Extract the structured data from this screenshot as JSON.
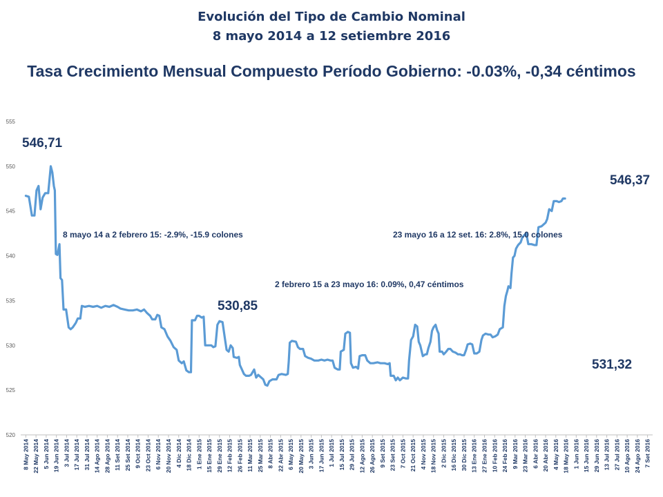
{
  "title_line1": "Evolución del Tipo de Cambio Nominal",
  "title_line2": "8 mayo 2014 a 12 setiembre 2016",
  "subtitle": "Tasa Crecimiento Mensual Compuesto Período Gobierno: -0.03%, -0,34 céntimos",
  "annotations": {
    "start_value": "546,71",
    "end_value": "546,37",
    "mid_low": "530,85",
    "late_low": "531,32",
    "period1": "8 mayo 14 a 2 febrero 15: -2.9%, -15.9 colones",
    "period2": "2 febrero 15 a 23 mayo 16: 0.09%, 0,47 céntimos",
    "period3": "23 mayo 16 a 12 set. 16: 2.8%, 15.0 colones"
  },
  "colors": {
    "line": "#5b9bd5",
    "title": "#1f3864",
    "axis": "#bfbfbf"
  },
  "chart_data": {
    "type": "line",
    "title": "Evolución del Tipo de Cambio Nominal",
    "ylim": [
      520,
      555
    ],
    "yticks": [
      520,
      525,
      530,
      535,
      540,
      545,
      550,
      555
    ],
    "grid": false,
    "x_tick_labels": [
      "8 May 2014",
      "22 May 2014",
      "5 Jun 2014",
      "19 Jun 2014",
      "3 Jul 2014",
      "17 Jul 2014",
      "31 Jul 2014",
      "14 Ago 2014",
      "28 Ago 2014",
      "11 Set 2014",
      "25 Set 2014",
      "9 Oct 2014",
      "23 Oct 2014",
      "6 Nov 2014",
      "20 Nov 2014",
      "4 Dic 2014",
      "18 Dic 2014",
      "1 Ene 2015",
      "15 Ene 2015",
      "29 Ene 2015",
      "12 Feb 2015",
      "26 Feb 2015",
      "11 Mar 2015",
      "25 Mar 2015",
      "8 Abr 2015",
      "22 Abr 2015",
      "6 May 2015",
      "20 May 2015",
      "3 Jun 2015",
      "17 Jun 2015",
      "1 Jul 2015",
      "15 Jul 2015",
      "29 Jul 2015",
      "12 Ago 2015",
      "26 Ago 2015",
      "9 Set 2015",
      "23 Set 2015",
      "7 Oct 2015",
      "21 Oct 2015",
      "4 Nov 2015",
      "18 Nov 2015",
      "2 Dic 2015",
      "16 Dic 2015",
      "30 Dic 2015",
      "13 Ene 2016",
      "27 Ene 2016",
      "10 Feb 2016",
      "24 Feb 2016",
      "9 Mar 2016",
      "23 Mar 2016",
      "6 Abr 2016",
      "20 Abr 2016",
      "4 May 2016",
      "18 May 2016",
      "1 Jun 2016",
      "15 Jun 2016",
      "29 Jun 2016",
      "13 Jul 2016",
      "27 Jul 2016",
      "10 Ago 2016",
      "24 Ago 2016",
      "7 Set 2016"
    ],
    "series": [
      {
        "values": [
          [
            0,
            546.7
          ],
          [
            0.3,
            546.6
          ],
          [
            0.6,
            544.5
          ],
          [
            0.85,
            544.5
          ],
          [
            1.05,
            547.3
          ],
          [
            1.25,
            547.8
          ],
          [
            1.45,
            545.2
          ],
          [
            1.65,
            546.5
          ],
          [
            1.9,
            547
          ],
          [
            2.2,
            547
          ],
          [
            2.45,
            550
          ],
          [
            2.6,
            549.3
          ],
          [
            2.75,
            547.8
          ],
          [
            2.85,
            547.3
          ],
          [
            2.95,
            540.2
          ],
          [
            3.1,
            540.1
          ],
          [
            3.3,
            541.3
          ],
          [
            3.4,
            537.5
          ],
          [
            3.55,
            537.3
          ],
          [
            3.7,
            534
          ],
          [
            3.95,
            534
          ],
          [
            4.2,
            532
          ],
          [
            4.4,
            531.8
          ],
          [
            4.6,
            532
          ],
          [
            4.9,
            532.5
          ],
          [
            5.1,
            533
          ],
          [
            5.35,
            533
          ],
          [
            5.5,
            534.4
          ],
          [
            5.8,
            534.3
          ],
          [
            6.2,
            534.4
          ],
          [
            6.6,
            534.3
          ],
          [
            7,
            534.4
          ],
          [
            7.4,
            534.2
          ],
          [
            7.8,
            534.4
          ],
          [
            8.2,
            534.3
          ],
          [
            8.6,
            534.5
          ],
          [
            9,
            534.3
          ],
          [
            9.3,
            534.1
          ],
          [
            9.7,
            534
          ],
          [
            10.1,
            533.9
          ],
          [
            10.5,
            533.9
          ],
          [
            10.9,
            534
          ],
          [
            11.3,
            533.8
          ],
          [
            11.6,
            534
          ],
          [
            11.9,
            533.6
          ],
          [
            12.2,
            533.3
          ],
          [
            12.4,
            532.9
          ],
          [
            12.7,
            532.9
          ],
          [
            12.9,
            533.4
          ],
          [
            13.1,
            533.3
          ],
          [
            13.3,
            532
          ],
          [
            13.6,
            531.8
          ],
          [
            13.9,
            531
          ],
          [
            14.2,
            530.5
          ],
          [
            14.5,
            529.8
          ],
          [
            14.8,
            529.5
          ],
          [
            15,
            528.3
          ],
          [
            15.3,
            528
          ],
          [
            15.5,
            528.2
          ],
          [
            15.75,
            527.2
          ],
          [
            16,
            527
          ],
          [
            16.2,
            527
          ],
          [
            16.3,
            532.8
          ],
          [
            16.6,
            532.8
          ],
          [
            16.8,
            533.3
          ],
          [
            17,
            533.3
          ],
          [
            17.25,
            533.1
          ],
          [
            17.45,
            533.2
          ],
          [
            17.6,
            530
          ],
          [
            17.9,
            530
          ],
          [
            18.2,
            530
          ],
          [
            18.4,
            529.8
          ],
          [
            18.6,
            529.9
          ],
          [
            18.8,
            532.3
          ],
          [
            19,
            532.7
          ],
          [
            19.3,
            532.6
          ],
          [
            19.5,
            531
          ],
          [
            19.7,
            529.5
          ],
          [
            19.9,
            529.3
          ],
          [
            20.1,
            530
          ],
          [
            20.3,
            529.7
          ],
          [
            20.4,
            528.7
          ],
          [
            20.7,
            528.6
          ],
          [
            20.9,
            528.7
          ],
          [
            21,
            527.8
          ],
          [
            21.2,
            527.3
          ],
          [
            21.4,
            526.8
          ],
          [
            21.6,
            526.6
          ],
          [
            21.9,
            526.6
          ],
          [
            22.1,
            526.7
          ],
          [
            22.4,
            527.3
          ],
          [
            22.6,
            526.4
          ],
          [
            22.8,
            526.7
          ],
          [
            23,
            526.5
          ],
          [
            23.3,
            526.2
          ],
          [
            23.5,
            525.6
          ],
          [
            23.7,
            525.5
          ],
          [
            23.9,
            526
          ],
          [
            24.2,
            526.2
          ],
          [
            24.4,
            526.2
          ],
          [
            24.6,
            526.2
          ],
          [
            24.8,
            526.7
          ],
          [
            25.1,
            526.8
          ],
          [
            25.5,
            526.7
          ],
          [
            25.7,
            526.8
          ],
          [
            25.8,
            528.2
          ],
          [
            25.9,
            530.3
          ],
          [
            26.1,
            530.5
          ],
          [
            26.5,
            530.4
          ],
          [
            26.7,
            529.8
          ],
          [
            26.9,
            529.6
          ],
          [
            27.2,
            529.6
          ],
          [
            27.4,
            528.8
          ],
          [
            27.7,
            528.6
          ],
          [
            28,
            528.5
          ],
          [
            28.3,
            528.3
          ],
          [
            28.7,
            528.3
          ],
          [
            29,
            528.4
          ],
          [
            29.3,
            528.3
          ],
          [
            29.6,
            528.4
          ],
          [
            29.9,
            528.3
          ],
          [
            30.1,
            528.3
          ],
          [
            30.3,
            527.5
          ],
          [
            30.6,
            527.3
          ],
          [
            30.8,
            527.3
          ],
          [
            30.9,
            529.3
          ],
          [
            31.2,
            529.5
          ],
          [
            31.35,
            531.3
          ],
          [
            31.6,
            531.5
          ],
          [
            31.8,
            531.4
          ],
          [
            31.9,
            528
          ],
          [
            32.1,
            527.5
          ],
          [
            32.4,
            527.6
          ],
          [
            32.6,
            527.4
          ],
          [
            32.75,
            528.8
          ],
          [
            33,
            528.9
          ],
          [
            33.3,
            528.9
          ],
          [
            33.5,
            528.3
          ],
          [
            33.8,
            528
          ],
          [
            34.1,
            528
          ],
          [
            34.5,
            528.1
          ],
          [
            34.8,
            528
          ],
          [
            35.2,
            528
          ],
          [
            35.5,
            527.9
          ],
          [
            35.7,
            528
          ],
          [
            35.8,
            526.6
          ],
          [
            36.1,
            526.6
          ],
          [
            36.3,
            526.1
          ],
          [
            36.5,
            526.4
          ],
          [
            36.7,
            526.1
          ],
          [
            37,
            526.4
          ],
          [
            37.3,
            526.3
          ],
          [
            37.5,
            526.3
          ],
          [
            37.6,
            528.3
          ],
          [
            37.8,
            530.6
          ],
          [
            38,
            531
          ],
          [
            38.2,
            532.3
          ],
          [
            38.4,
            532.1
          ],
          [
            38.55,
            530.4
          ],
          [
            38.7,
            530
          ],
          [
            38.95,
            528.8
          ],
          [
            39.2,
            529
          ],
          [
            39.35,
            529
          ],
          [
            39.5,
            529.7
          ],
          [
            39.7,
            530.4
          ],
          [
            39.85,
            531.6
          ],
          [
            40,
            532
          ],
          [
            40.2,
            532.3
          ],
          [
            40.35,
            531.7
          ],
          [
            40.5,
            531.3
          ],
          [
            40.6,
            529.3
          ],
          [
            40.85,
            529.3
          ],
          [
            41,
            529
          ],
          [
            41.25,
            529.3
          ],
          [
            41.45,
            529.6
          ],
          [
            41.65,
            529.6
          ],
          [
            41.9,
            529.3
          ],
          [
            42.15,
            529.2
          ],
          [
            42.4,
            529
          ],
          [
            42.6,
            529
          ],
          [
            42.8,
            528.9
          ],
          [
            43,
            528.9
          ],
          [
            43.2,
            529.5
          ],
          [
            43.35,
            530.1
          ],
          [
            43.6,
            530.2
          ],
          [
            43.8,
            530.1
          ],
          [
            44,
            529.1
          ],
          [
            44.25,
            529.1
          ],
          [
            44.5,
            529.3
          ],
          [
            44.7,
            530.6
          ],
          [
            44.85,
            531.1
          ],
          [
            45.1,
            531.3
          ],
          [
            45.4,
            531.2
          ],
          [
            45.6,
            531.2
          ],
          [
            45.8,
            530.9
          ],
          [
            46.05,
            531
          ],
          [
            46.3,
            531.2
          ],
          [
            46.5,
            531.8
          ],
          [
            46.8,
            532
          ],
          [
            46.95,
            534.4
          ],
          [
            47.1,
            535.5
          ],
          [
            47.25,
            536.1
          ],
          [
            47.35,
            536.6
          ],
          [
            47.55,
            536.4
          ],
          [
            47.65,
            538
          ],
          [
            47.8,
            539.8
          ],
          [
            47.95,
            540
          ],
          [
            48.1,
            540.8
          ],
          [
            48.3,
            541.2
          ],
          [
            48.55,
            541.5
          ],
          [
            48.7,
            542
          ],
          [
            48.9,
            542.3
          ],
          [
            49.1,
            542.5
          ],
          [
            49.3,
            541.3
          ],
          [
            49.6,
            541.3
          ],
          [
            49.9,
            541.2
          ],
          [
            50.1,
            541.2
          ],
          [
            50.3,
            543.2
          ],
          [
            50.6,
            543.3
          ],
          [
            50.8,
            543.5
          ],
          [
            51,
            543.7
          ],
          [
            51.15,
            544.1
          ],
          [
            51.35,
            545.2
          ],
          [
            51.6,
            545
          ],
          [
            51.8,
            546.1
          ],
          [
            52.1,
            546.1
          ],
          [
            52.3,
            546
          ],
          [
            52.55,
            546.1
          ],
          [
            52.7,
            546.4
          ],
          [
            52.9,
            546.4
          ]
        ]
      }
    ]
  }
}
